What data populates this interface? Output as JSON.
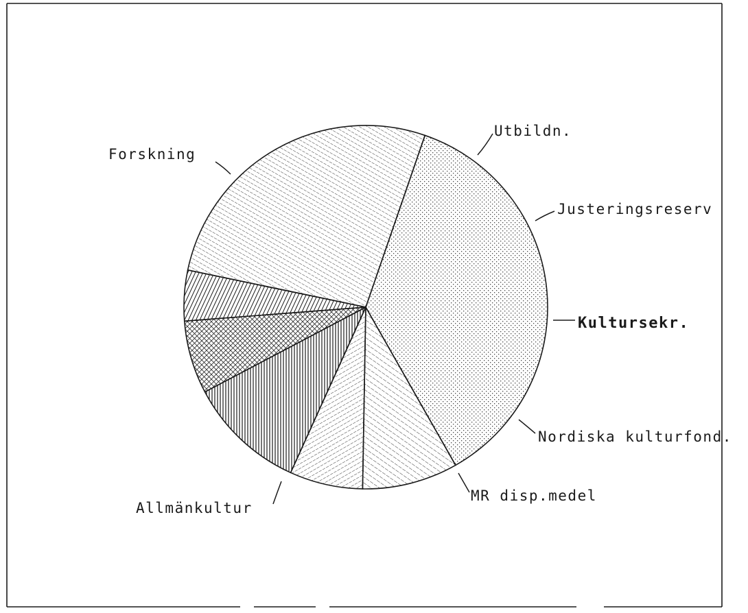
{
  "chart_data": {
    "type": "pie",
    "title": "",
    "slices": [
      {
        "label": "Forskning",
        "value": 36.5,
        "pattern": "dots"
      },
      {
        "label": "Utbildn.",
        "value": 8.5,
        "pattern": "dash-diag"
      },
      {
        "label": "Justeringsreserv",
        "value": 6.5,
        "pattern": "dash-shallow"
      },
      {
        "label": "Kultursekr.",
        "value": 10.5,
        "pattern": "vertical"
      },
      {
        "label": "Nordiska kulturfond.",
        "value": 6.5,
        "pattern": "crosshatch"
      },
      {
        "label": "MR disp.medel",
        "value": 4.5,
        "pattern": "steep"
      },
      {
        "label": "Allmänkultur",
        "value": 27.0,
        "pattern": "dash-desc"
      }
    ]
  }
}
